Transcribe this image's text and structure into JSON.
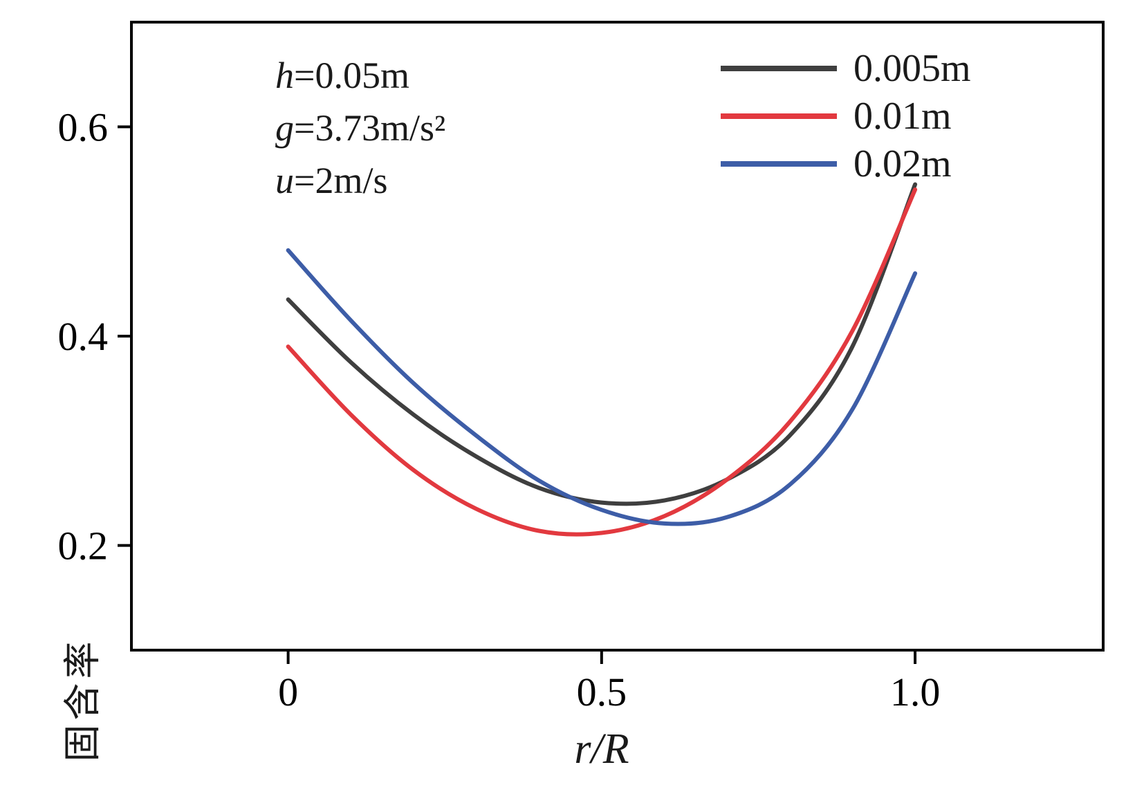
{
  "chart_data": {
    "type": "line",
    "title": "",
    "xlabel": "r/R",
    "ylabel": "固含率",
    "xlim": [
      -0.25,
      1.3
    ],
    "ylim": [
      0.1,
      0.7
    ],
    "xticks": [
      0,
      0.5,
      1.0
    ],
    "xtick_labels": [
      "0",
      "0.5",
      "1.0"
    ],
    "yticks": [
      0.2,
      0.4,
      0.6
    ],
    "ytick_labels": [
      "0.2",
      "0.4",
      "0.6"
    ],
    "grid": false,
    "legend_position": "top-right",
    "axis_color": "#000000",
    "x": [
      0,
      0.1,
      0.2,
      0.3,
      0.4,
      0.5,
      0.6,
      0.7,
      0.8,
      0.9,
      1.0
    ],
    "series": [
      {
        "name": "0.005m",
        "color": "#3f3f3f",
        "values": [
          0.435,
          0.375,
          0.325,
          0.285,
          0.255,
          0.241,
          0.243,
          0.263,
          0.305,
          0.39,
          0.545
        ]
      },
      {
        "name": "0.01m",
        "color": "#e2393f",
        "values": [
          0.39,
          0.325,
          0.272,
          0.235,
          0.214,
          0.212,
          0.228,
          0.263,
          0.318,
          0.405,
          0.54
        ]
      },
      {
        "name": "0.02m",
        "color": "#3d5da7",
        "values": [
          0.482,
          0.415,
          0.355,
          0.305,
          0.262,
          0.234,
          0.221,
          0.227,
          0.258,
          0.33,
          0.46
        ]
      }
    ],
    "annotations": [
      {
        "symbol": "h",
        "text": "=0.05m"
      },
      {
        "symbol": "g",
        "text": "=3.73m/s²"
      },
      {
        "symbol": "u",
        "text": "=2m/s"
      }
    ]
  }
}
